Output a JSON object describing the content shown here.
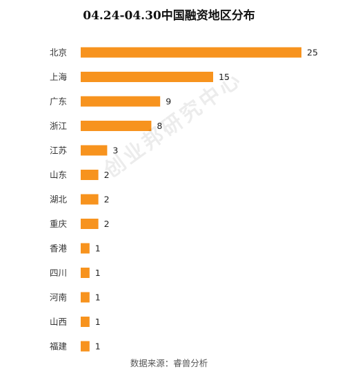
{
  "chart_data": {
    "type": "bar",
    "orientation": "horizontal",
    "title": "04.24-04.30中国融资地区分布",
    "categories": [
      "北京",
      "上海",
      "广东",
      "浙江",
      "江苏",
      "山东",
      "湖北",
      "重庆",
      "香港",
      "四川",
      "河南",
      "山西",
      "福建"
    ],
    "values": [
      25,
      15,
      9,
      8,
      3,
      2,
      2,
      2,
      1,
      1,
      1,
      1,
      1
    ],
    "xlim": [
      0,
      25
    ],
    "grid": false,
    "legend": "none",
    "data_labels": true,
    "bar_color": "#F7931E"
  },
  "source": "数据来源：睿兽分析",
  "watermark": "创业邦研究中心"
}
